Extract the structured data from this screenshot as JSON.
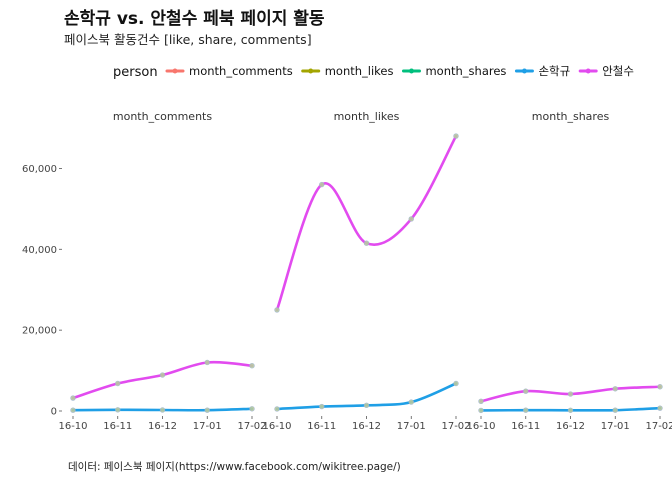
{
  "title": "손학규 vs. 안철수 페북 페이지 활동",
  "subtitle": "페이스북 활동건수 [like, share, comments]",
  "caption": "데이터: 페이스북 페이지(https://www.facebook.com/wikitree.page/)",
  "chart_data": {
    "type": "line",
    "title": "손학규 vs. 안철수 페북 페이지 활동",
    "subtitle": "페이스북 활동건수 [like, share, comments]",
    "legend": {
      "title": "person",
      "position": "top",
      "entries": [
        {
          "label": "month_comments",
          "color": "#F8766D"
        },
        {
          "label": "month_likes",
          "color": "#A3A500"
        },
        {
          "label": "month_shares",
          "color": "#00BF7D"
        },
        {
          "label": "손학규",
          "color": "#1F9FE6"
        },
        {
          "label": "안철수",
          "color": "#E24BEF"
        }
      ]
    },
    "x_categories": [
      "16-10",
      "16-11",
      "16-12",
      "17-01",
      "17-02"
    ],
    "ylim": [
      0,
      70000
    ],
    "y_ticks": [
      0,
      20000,
      40000,
      60000
    ],
    "y_tick_labels": [
      "0",
      "20,000",
      "40,000",
      "60,000"
    ],
    "grid": false,
    "facets": [
      {
        "strip": "month_comments",
        "series": [
          {
            "name": "안철수",
            "color": "#E24BEF",
            "values": [
              3200,
              6800,
              8900,
              12000,
              11200
            ]
          },
          {
            "name": "손학규",
            "color": "#1F9FE6",
            "values": [
              200,
              300,
              250,
              200,
              550
            ]
          }
        ]
      },
      {
        "strip": "month_likes",
        "series": [
          {
            "name": "안철수",
            "color": "#E24BEF",
            "values": [
              25000,
              56000,
              41500,
              47500,
              68000
            ]
          },
          {
            "name": "손학규",
            "color": "#1F9FE6",
            "values": [
              500,
              1100,
              1400,
              2200,
              6800
            ]
          }
        ]
      },
      {
        "strip": "month_shares",
        "series": [
          {
            "name": "안철수",
            "color": "#E24BEF",
            "values": [
              2400,
              4900,
              4200,
              5500,
              6000
            ]
          },
          {
            "name": "손학규",
            "color": "#1F9FE6",
            "values": [
              150,
              200,
              180,
              200,
              700
            ]
          }
        ]
      }
    ]
  }
}
